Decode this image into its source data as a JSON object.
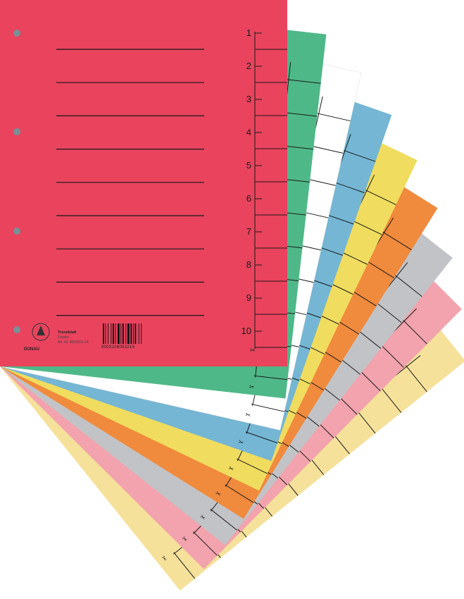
{
  "product": {
    "tab_numbers": [
      "1",
      "2",
      "3",
      "4",
      "5",
      "6",
      "7",
      "8",
      "9",
      "10"
    ],
    "label_title": "Trennblatt",
    "label_subtitle": "Divider",
    "label_article": "Art. Nr. 8610001-04",
    "brand": "DONAU",
    "barcode_number": "9003106053216",
    "scissor_icon": "scissors-icon"
  },
  "colors": {
    "sheets_bottom_to_top": [
      "#f5e19a",
      "#f2a3ad",
      "#c2c3c6",
      "#f08a3c",
      "#f0dc5e",
      "#74b6d4",
      "#ffffff",
      "#4fb888"
    ],
    "front_sheet": "#e9435e",
    "line": "#1a1a1a"
  }
}
